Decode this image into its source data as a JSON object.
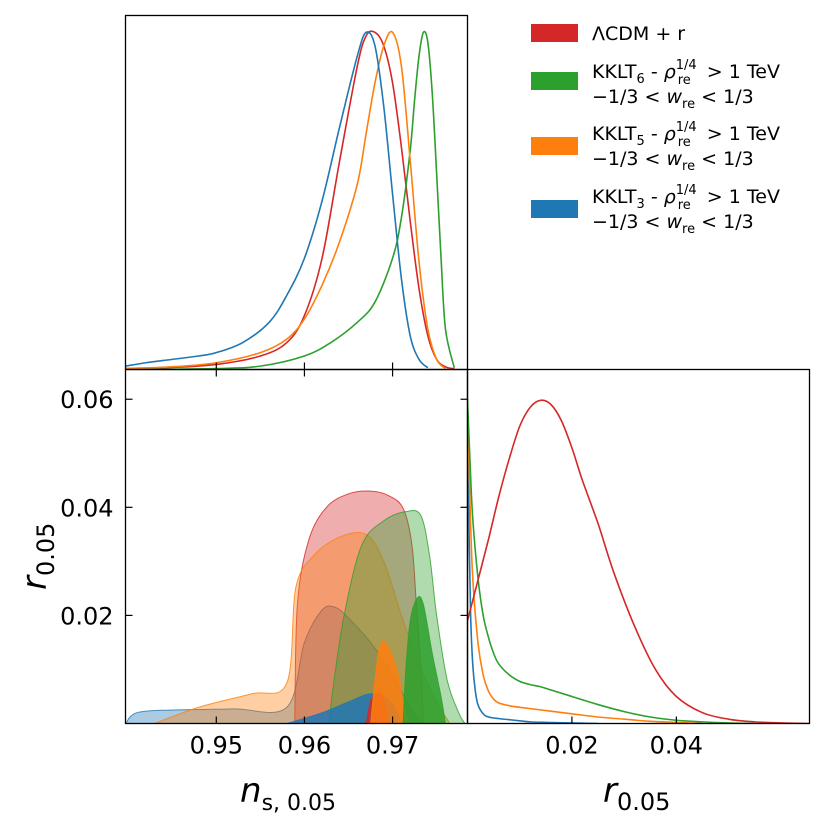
{
  "colors": {
    "lcdm": "#d62728",
    "kklt6": "#2ca02c",
    "kklt5": "#ff7f0e",
    "kklt3": "#1f77b4"
  },
  "legend": [
    {
      "key": "lcdm",
      "line1": "ΛCDM + r",
      "line2": ""
    },
    {
      "key": "kklt6",
      "line1": "KKLT₆ - ρ_re^{1/4} > 1 TeV",
      "line2": "−1/3 < w_re < 1/3"
    },
    {
      "key": "kklt5",
      "line1": "KKLT₅ - ρ_re^{1/4} > 1 TeV",
      "line2": "−1/3 < w_re < 1/3"
    },
    {
      "key": "kklt3",
      "line1": "KKLT₃ - ρ_re^{1/4} > 1 TeV",
      "line2": "−1/3 < w_re < 1/3"
    }
  ],
  "chart_data": [
    {
      "type": "line",
      "panel": "ns-marginal",
      "xlim": [
        0.9397,
        0.9785
      ],
      "ylim": [
        0,
        1.05
      ],
      "series": [
        {
          "name": "ΛCDM + r",
          "key": "lcdm",
          "x": [
            0.9397,
            0.945,
            0.95,
            0.955,
            0.958,
            0.96,
            0.962,
            0.964,
            0.966,
            0.967,
            0.968,
            0.969,
            0.97,
            0.971,
            0.972,
            0.973,
            0.974,
            0.975,
            0.976,
            0.977
          ],
          "y": [
            0.003,
            0.006,
            0.015,
            0.04,
            0.08,
            0.16,
            0.33,
            0.62,
            0.9,
            0.99,
            1.0,
            0.96,
            0.85,
            0.66,
            0.44,
            0.24,
            0.1,
            0.03,
            0.008,
            0.002
          ]
        },
        {
          "name": "KKLT₆ - ρ_re^{1/4} > 1 TeV, −1/3 < w_re < 1/3",
          "key": "kklt6",
          "x": [
            0.9397,
            0.95,
            0.955,
            0.96,
            0.963,
            0.966,
            0.968,
            0.97,
            0.971,
            0.972,
            0.9725,
            0.973,
            0.9735,
            0.974,
            0.9745,
            0.975,
            0.9755,
            0.976,
            0.977
          ],
          "y": [
            0.0,
            0.003,
            0.01,
            0.04,
            0.08,
            0.14,
            0.2,
            0.33,
            0.45,
            0.65,
            0.8,
            0.93,
            1.0,
            0.97,
            0.82,
            0.58,
            0.33,
            0.12,
            0.005
          ]
        },
        {
          "name": "KKLT₅ - ρ_re^{1/4} > 1 TeV, −1/3 < w_re < 1/3",
          "key": "kklt5",
          "x": [
            0.9397,
            0.945,
            0.95,
            0.955,
            0.958,
            0.96,
            0.962,
            0.964,
            0.966,
            0.967,
            0.968,
            0.969,
            0.97,
            0.971,
            0.972,
            0.973,
            0.974,
            0.975,
            0.976
          ],
          "y": [
            0.003,
            0.008,
            0.02,
            0.05,
            0.09,
            0.15,
            0.25,
            0.38,
            0.55,
            0.7,
            0.85,
            0.96,
            1.0,
            0.9,
            0.62,
            0.32,
            0.12,
            0.03,
            0.003
          ]
        },
        {
          "name": "KKLT₃ - ρ_re^{1/4} > 1 TeV, −1/3 < w_re < 1/3",
          "key": "kklt3",
          "x": [
            0.9397,
            0.942,
            0.945,
            0.948,
            0.95,
            0.953,
            0.956,
            0.958,
            0.96,
            0.962,
            0.964,
            0.966,
            0.967,
            0.968,
            0.969,
            0.97,
            0.971,
            0.972,
            0.973,
            0.974
          ],
          "y": [
            0.01,
            0.02,
            0.03,
            0.04,
            0.05,
            0.08,
            0.14,
            0.22,
            0.33,
            0.5,
            0.72,
            0.93,
            1.0,
            0.96,
            0.78,
            0.52,
            0.27,
            0.1,
            0.03,
            0.005
          ]
        }
      ]
    },
    {
      "type": "area",
      "panel": "ns-r-2d",
      "xlabel": "n_s, 0.05",
      "ylabel": "r_0.05",
      "xlim": [
        0.9397,
        0.9785
      ],
      "ylim": [
        0,
        0.0655
      ],
      "xticks": [
        "0.95",
        "0.96",
        "0.97"
      ],
      "xtick_values": [
        0.95,
        0.96,
        0.97
      ],
      "yticks": [
        "0.02",
        "0.04",
        "0.06"
      ],
      "ytick_values": [
        0.02,
        0.04,
        0.06
      ],
      "contours": [
        {
          "key": "lcdm",
          "level": "95%",
          "x": [
            0.9589,
            0.9592,
            0.9605,
            0.9625,
            0.965,
            0.9675,
            0.9695,
            0.9712,
            0.9722,
            0.9727,
            0.9733,
            0.9735
          ],
          "y": [
            0.0,
            0.022,
            0.034,
            0.04,
            0.0425,
            0.043,
            0.0422,
            0.0398,
            0.033,
            0.022,
            0.008,
            0.0
          ]
        },
        {
          "key": "lcdm",
          "level": "68%",
          "x": [
            0.967,
            0.9676,
            0.9688,
            0.9696
          ],
          "y": [
            0.0,
            0.0045,
            0.0055,
            0.0
          ]
        },
        {
          "key": "kklt5",
          "level": "95%",
          "x": [
            0.943,
            0.948,
            0.954,
            0.958,
            0.959,
            0.961,
            0.964,
            0.967,
            0.969,
            0.971,
            0.973,
            0.975,
            0.9765
          ],
          "y": [
            0.0,
            0.003,
            0.0055,
            0.0075,
            0.025,
            0.031,
            0.0345,
            0.035,
            0.03,
            0.02,
            0.011,
            0.004,
            0.0
          ]
        },
        {
          "key": "kklt5",
          "level": "68%",
          "x": [
            0.9675,
            0.968,
            0.9685,
            0.9692,
            0.9705,
            0.9712,
            0.9718
          ],
          "y": [
            0.0,
            0.008,
            0.014,
            0.015,
            0.01,
            0.004,
            0.0
          ]
        },
        {
          "key": "kklt6",
          "level": "95%",
          "x": [
            0.9628,
            0.9632,
            0.9645,
            0.9665,
            0.969,
            0.9715,
            0.9732,
            0.9742,
            0.975,
            0.9762,
            0.9775,
            0.9782
          ],
          "y": [
            0.0,
            0.006,
            0.02,
            0.033,
            0.0375,
            0.0392,
            0.0385,
            0.031,
            0.02,
            0.008,
            0.002,
            0.0
          ]
        },
        {
          "key": "kklt6",
          "level": "68%",
          "x": [
            0.9712,
            0.9715,
            0.972,
            0.9728,
            0.9735,
            0.9745,
            0.9755,
            0.976
          ],
          "y": [
            0.0,
            0.01,
            0.019,
            0.0232,
            0.022,
            0.013,
            0.005,
            0.0
          ]
        },
        {
          "key": "kklt3",
          "level": "95%",
          "x": [
            0.9397,
            0.941,
            0.945,
            0.952,
            0.958,
            0.96,
            0.962,
            0.9635,
            0.965,
            0.9675,
            0.97,
            0.972,
            0.9732
          ],
          "y": [
            0.0,
            0.002,
            0.0025,
            0.0027,
            0.003,
            0.015,
            0.021,
            0.0215,
            0.0195,
            0.015,
            0.009,
            0.003,
            0.0
          ]
        },
        {
          "key": "kklt3",
          "level": "68%",
          "x": [
            0.958,
            0.962,
            0.965,
            0.9675,
            0.9695,
            0.9705,
            0.971
          ],
          "y": [
            0.0,
            0.002,
            0.004,
            0.0055,
            0.0045,
            0.002,
            0.0
          ]
        }
      ]
    },
    {
      "type": "line",
      "panel": "r-marginal",
      "xlabel": "r_0.05",
      "xlim": [
        0.0,
        0.0655
      ],
      "ylim": [
        0,
        0.0655
      ],
      "xticks": [
        "0.02",
        "0.04"
      ],
      "xtick_values": [
        0.02,
        0.04
      ],
      "series": [
        {
          "name": "ΛCDM + r",
          "key": "lcdm",
          "x": [
            0.0,
            0.002,
            0.004,
            0.006,
            0.008,
            0.01,
            0.012,
            0.014,
            0.016,
            0.018,
            0.02,
            0.022,
            0.025,
            0.028,
            0.032,
            0.036,
            0.04,
            0.045,
            0.05,
            0.055,
            0.06,
            0.0655
          ],
          "y": [
            0.019,
            0.0265,
            0.034,
            0.042,
            0.049,
            0.055,
            0.0585,
            0.0598,
            0.059,
            0.056,
            0.051,
            0.045,
            0.037,
            0.028,
            0.018,
            0.01,
            0.005,
            0.002,
            0.0008,
            0.0003,
            0.0001,
            0.0
          ]
        },
        {
          "name": "KKLT₆ - ρ_re^{1/4} > 1 TeV, −1/3 < w_re < 1/3",
          "key": "kklt6",
          "x": [
            0.0,
            0.0005,
            0.001,
            0.002,
            0.003,
            0.004,
            0.005,
            0.006,
            0.008,
            0.01,
            0.012,
            0.014,
            0.016,
            0.02,
            0.025,
            0.03,
            0.035,
            0.04,
            0.045,
            0.05,
            0.055
          ],
          "y": [
            0.06,
            0.048,
            0.038,
            0.027,
            0.02,
            0.016,
            0.013,
            0.011,
            0.009,
            0.0078,
            0.0072,
            0.0068,
            0.0062,
            0.005,
            0.0035,
            0.0022,
            0.0012,
            0.0006,
            0.0003,
            0.0001,
            0.0
          ]
        },
        {
          "name": "KKLT₅ - ρ_re^{1/4} > 1 TeV, −1/3 < w_re < 1/3",
          "key": "kklt5",
          "x": [
            0.0,
            0.0005,
            0.001,
            0.002,
            0.003,
            0.004,
            0.005,
            0.006,
            0.008,
            0.01,
            0.015,
            0.02,
            0.025,
            0.03,
            0.035,
            0.04,
            0.045
          ],
          "y": [
            0.06,
            0.04,
            0.027,
            0.015,
            0.009,
            0.006,
            0.0045,
            0.0038,
            0.0033,
            0.003,
            0.0024,
            0.0018,
            0.0012,
            0.0008,
            0.0004,
            0.0002,
            0.0
          ]
        },
        {
          "name": "KKLT₃ - ρ_re^{1/4} > 1 TeV, −1/3 < w_re < 1/3",
          "key": "kklt3",
          "x": [
            0.0,
            0.0003,
            0.0006,
            0.001,
            0.0015,
            0.002,
            0.003,
            0.004,
            0.006,
            0.008,
            0.01,
            0.012,
            0.015,
            0.02,
            0.025
          ],
          "y": [
            0.06,
            0.035,
            0.02,
            0.011,
            0.006,
            0.0035,
            0.0018,
            0.0012,
            0.0009,
            0.0007,
            0.0005,
            0.0003,
            0.0002,
            0.0001,
            0.0
          ]
        }
      ]
    }
  ]
}
